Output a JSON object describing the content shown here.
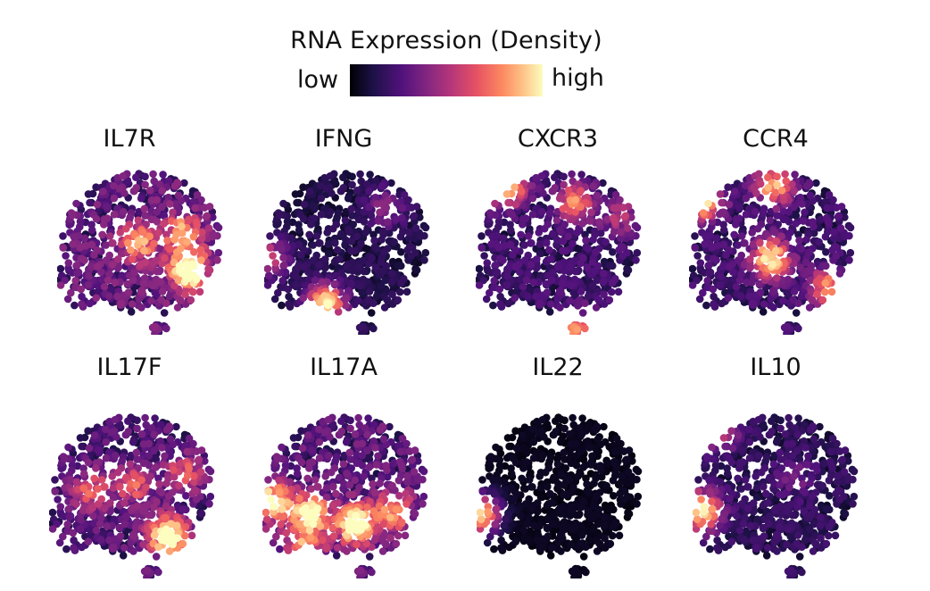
{
  "legend": {
    "title": "RNA Expression (Density)",
    "low_label": "low",
    "high_label": "high",
    "colormap": "magma",
    "colors": [
      "#000004",
      "#1d1147",
      "#51127c",
      "#832681",
      "#b73779",
      "#e75263",
      "#fc8961",
      "#fec488",
      "#fcfdbf"
    ]
  },
  "chart_data": {
    "type": "scatter",
    "title": "RNA Expression (Density)",
    "xlabel": "",
    "ylabel": "",
    "grid": false,
    "panels": [
      {
        "gene": "IL7R",
        "baseline": 0.32,
        "hotspots": [
          {
            "x": 0.78,
            "y": 0.62,
            "intensity": 0.95
          },
          {
            "x": 0.74,
            "y": 0.4,
            "intensity": 0.55
          },
          {
            "x": 0.48,
            "y": 0.46,
            "intensity": 0.55
          }
        ]
      },
      {
        "gene": "IFNG",
        "baseline": 0.15,
        "hotspots": [
          {
            "x": 0.36,
            "y": 0.82,
            "intensity": 0.85
          },
          {
            "x": 0.02,
            "y": 0.55,
            "intensity": 0.45
          },
          {
            "x": 0.72,
            "y": 0.25,
            "intensity": 0.28
          }
        ]
      },
      {
        "gene": "CXCR3",
        "baseline": 0.22,
        "hotspots": [
          {
            "x": 0.18,
            "y": 0.12,
            "intensity": 0.88
          },
          {
            "x": 0.58,
            "y": 0.22,
            "intensity": 0.55
          },
          {
            "x": 0.6,
            "y": 0.98,
            "intensity": 0.55
          },
          {
            "x": 0.85,
            "y": 0.3,
            "intensity": 0.3
          }
        ]
      },
      {
        "gene": "CCR4",
        "baseline": 0.22,
        "hotspots": [
          {
            "x": 0.08,
            "y": 0.2,
            "intensity": 0.85
          },
          {
            "x": 0.48,
            "y": 0.55,
            "intensity": 0.8
          },
          {
            "x": 0.5,
            "y": 0.12,
            "intensity": 0.65
          },
          {
            "x": 0.82,
            "y": 0.72,
            "intensity": 0.55
          }
        ]
      },
      {
        "gene": "IL17F",
        "baseline": 0.28,
        "hotspots": [
          {
            "x": 0.7,
            "y": 0.75,
            "intensity": 0.95
          },
          {
            "x": 0.25,
            "y": 0.48,
            "intensity": 0.4
          },
          {
            "x": 0.5,
            "y": 0.45,
            "intensity": 0.4
          },
          {
            "x": 0.8,
            "y": 0.38,
            "intensity": 0.4
          }
        ]
      },
      {
        "gene": "IL17A",
        "baseline": 0.3,
        "hotspots": [
          {
            "x": 0.05,
            "y": 0.55,
            "intensity": 0.8
          },
          {
            "x": 0.28,
            "y": 0.62,
            "intensity": 0.8
          },
          {
            "x": 0.55,
            "y": 0.68,
            "intensity": 0.9
          },
          {
            "x": 0.25,
            "y": 0.82,
            "intensity": 0.5
          },
          {
            "x": 0.78,
            "y": 0.6,
            "intensity": 0.55
          }
        ]
      },
      {
        "gene": "IL22",
        "baseline": 0.05,
        "hotspots": [
          {
            "x": 0.02,
            "y": 0.62,
            "intensity": 0.9
          }
        ]
      },
      {
        "gene": "IL10",
        "baseline": 0.18,
        "hotspots": [
          {
            "x": 0.05,
            "y": 0.6,
            "intensity": 0.85
          },
          {
            "x": 0.15,
            "y": 0.12,
            "intensity": 0.55
          },
          {
            "x": 0.6,
            "y": 0.4,
            "intensity": 0.18
          }
        ]
      }
    ]
  }
}
